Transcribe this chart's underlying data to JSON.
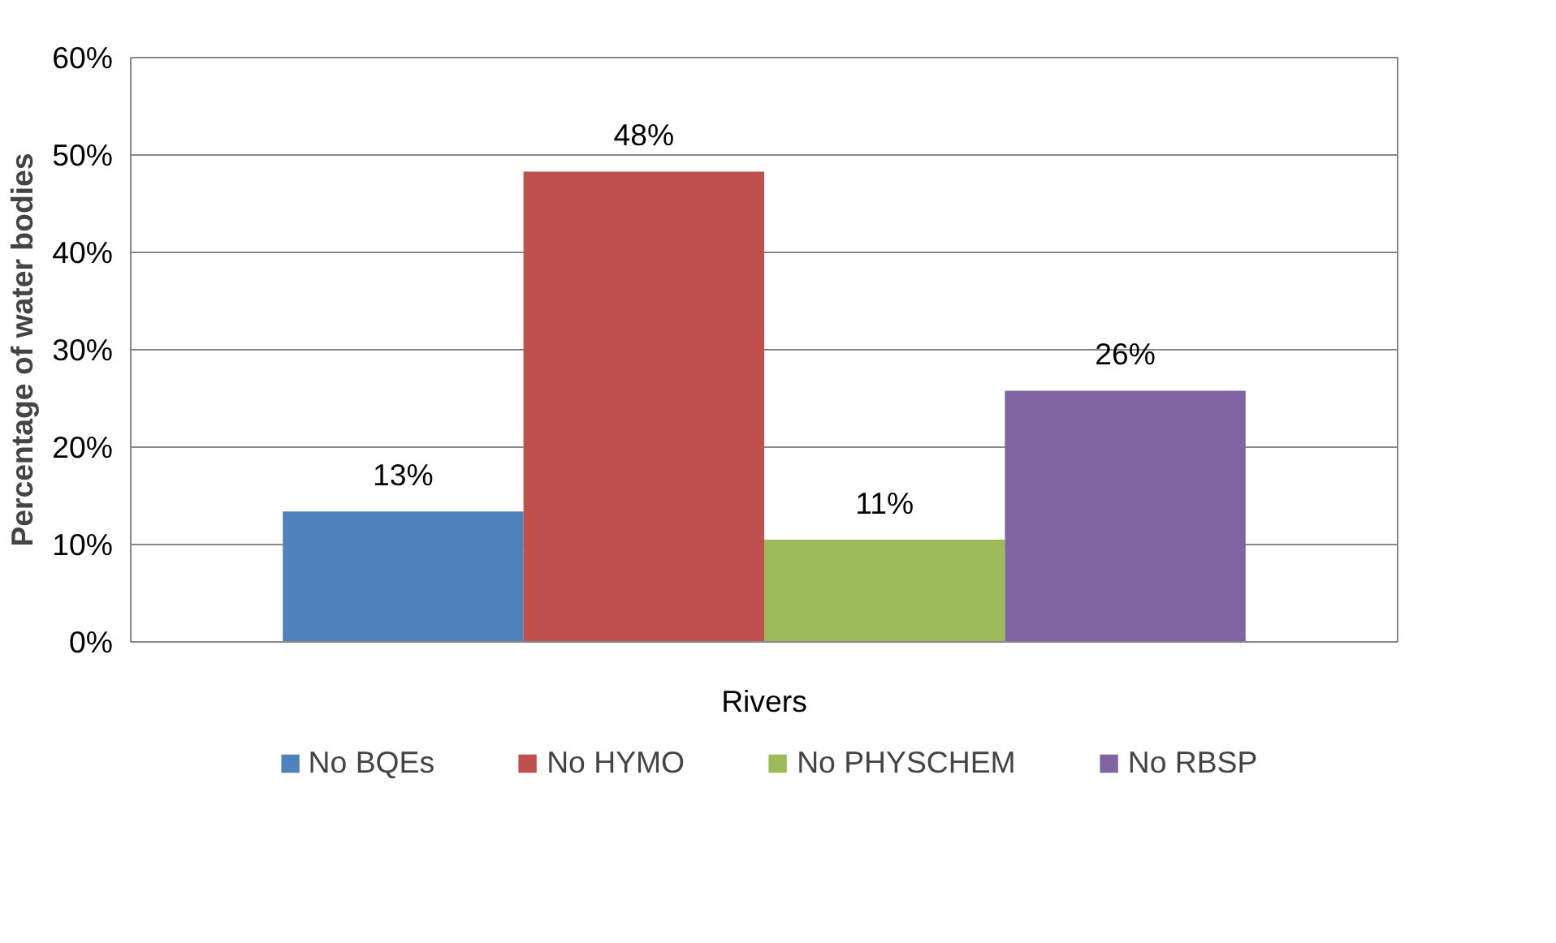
{
  "chart_data": {
    "type": "bar",
    "ylabel": "Percentage of water bodies",
    "categories": [
      "Rivers"
    ],
    "series": [
      {
        "name": "No BQEs",
        "color": "#4f81bd",
        "values": [
          13.4
        ],
        "value_labels": [
          "13%"
        ]
      },
      {
        "name": "No HYMO",
        "color": "#c0504d",
        "values": [
          48.3
        ],
        "value_labels": [
          "48%"
        ]
      },
      {
        "name": "No PHYSCHEM",
        "color": "#9bbb59",
        "values": [
          10.5
        ],
        "value_labels": [
          "11%"
        ]
      },
      {
        "name": "No RBSP",
        "color": "#8064a2",
        "values": [
          25.8
        ],
        "value_labels": [
          "26%"
        ]
      }
    ],
    "ylim": [
      0,
      60
    ],
    "yticks": [
      {
        "value": 0,
        "label": "0%"
      },
      {
        "value": 10,
        "label": "10%"
      },
      {
        "value": 20,
        "label": "20%"
      },
      {
        "value": 30,
        "label": "30%"
      },
      {
        "value": 40,
        "label": "40%"
      },
      {
        "value": 50,
        "label": "50%"
      },
      {
        "value": 60,
        "label": "60%"
      }
    ],
    "grid": "y",
    "legend": "bottom"
  }
}
